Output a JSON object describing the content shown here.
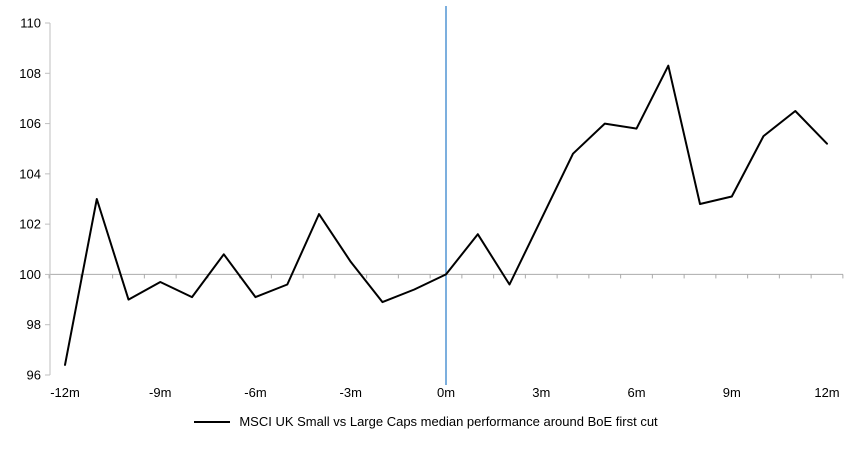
{
  "chart_data": {
    "type": "line",
    "title": "",
    "xlabel": "",
    "ylabel": "",
    "x_months": [
      -12,
      -11,
      -10,
      -9,
      -8,
      -7,
      -6,
      -5,
      -4,
      -3,
      -2,
      -1,
      0,
      1,
      2,
      3,
      4,
      5,
      6,
      7,
      8,
      9,
      10,
      11,
      12
    ],
    "series": [
      {
        "name": "MSCI UK Small vs Large Caps median performance around BoE first cut",
        "values": [
          96.4,
          103.0,
          99.0,
          99.7,
          99.1,
          100.8,
          99.1,
          99.6,
          102.4,
          100.5,
          98.9,
          99.4,
          100.0,
          101.6,
          99.6,
          102.2,
          104.8,
          106.0,
          105.8,
          108.3,
          102.8,
          103.1,
          105.5,
          106.5,
          105.2
        ],
        "color": "#000000"
      }
    ],
    "ylim": [
      96,
      110
    ],
    "y_ticks": [
      96,
      98,
      100,
      102,
      104,
      106,
      108,
      110
    ],
    "x_tick_months": [
      -12,
      -9,
      -6,
      -3,
      0,
      3,
      6,
      9,
      12
    ],
    "x_tick_labels": [
      "-12m",
      "-9m",
      "-6m",
      "-3m",
      "0m",
      "3m",
      "6m",
      "9m",
      "12m"
    ],
    "baseline_value": 100,
    "event_line_month": 0,
    "grid": false,
    "legend_position": "bottom-center",
    "colors": {
      "series_line": "#000000",
      "event_line": "#5B9BD5",
      "axis_line": "#BFBFBF",
      "baseline_line": "#ABABAB",
      "tick_text": "#000000"
    }
  },
  "legend": {
    "label": "MSCI UK Small vs Large Caps median performance around BoE first cut"
  }
}
